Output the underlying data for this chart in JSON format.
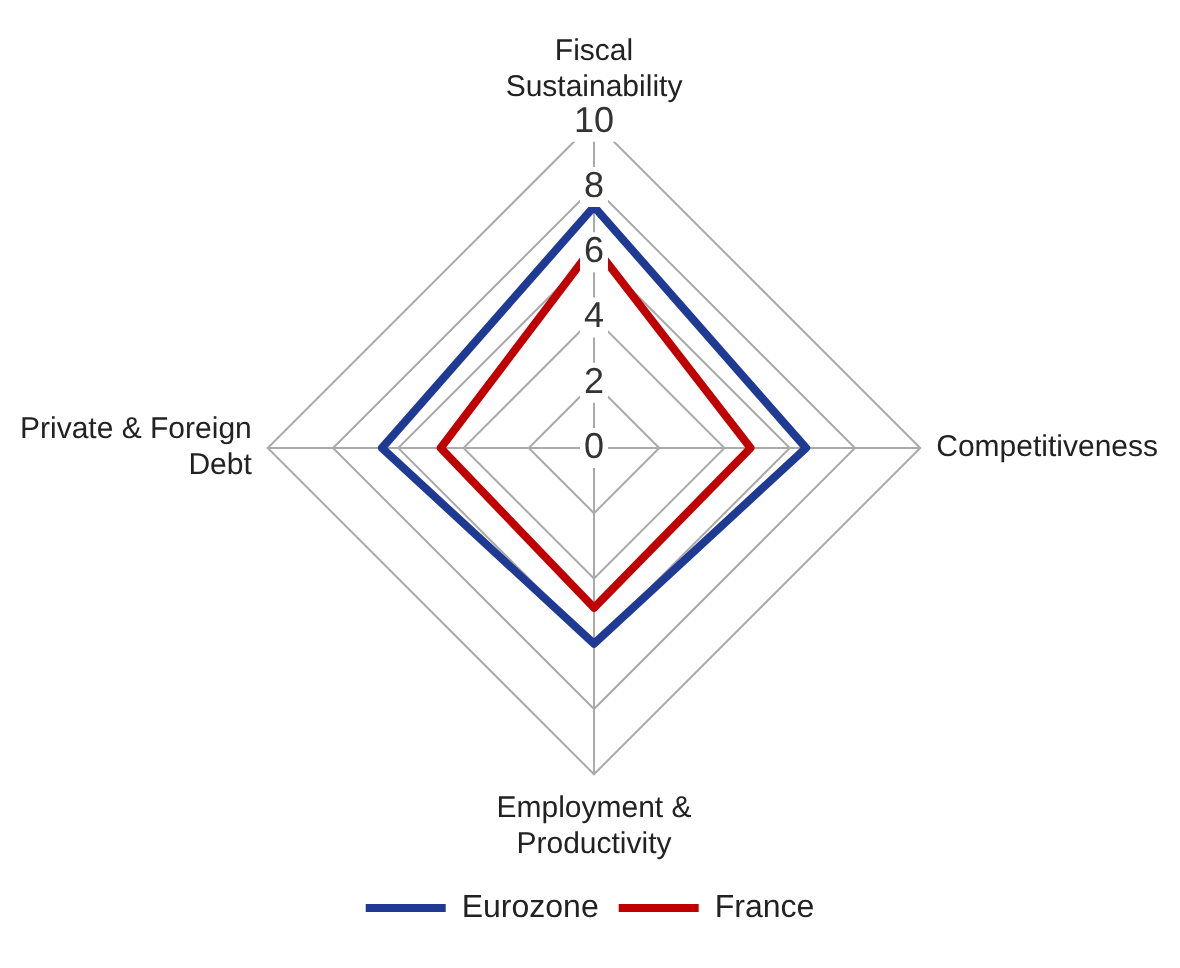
{
  "chart_data": {
    "type": "radar",
    "categories": [
      "Fiscal Sustainability",
      "Competitiveness",
      "Employment & Productivity",
      "Private & Foreign Debt"
    ],
    "series": [
      {
        "name": "Eurozone",
        "color": "#1f3a93",
        "values": [
          7.4,
          6.5,
          6.0,
          6.5
        ]
      },
      {
        "name": "France",
        "color": "#c00000",
        "values": [
          6.2,
          4.8,
          4.9,
          4.7
        ]
      }
    ],
    "ylim": [
      0,
      10
    ],
    "yticks": [
      0,
      2,
      4,
      6,
      8,
      10
    ],
    "grid": true,
    "legend": "bottom",
    "marker": "none"
  }
}
